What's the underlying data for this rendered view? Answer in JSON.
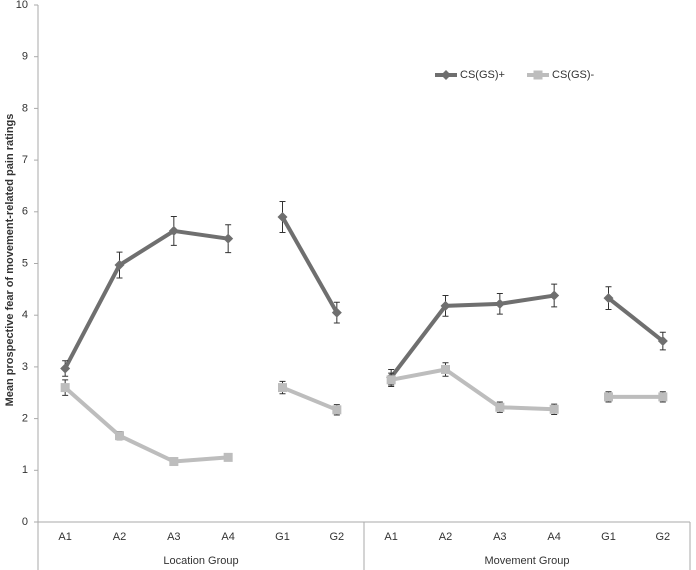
{
  "chart_data": {
    "type": "line",
    "y_label": "Mean prospective fear of movement-related pain ratings",
    "groups": [
      {
        "label": "Location Group",
        "categories": [
          "A1",
          "A2",
          "A3",
          "A4",
          "G1",
          "G2"
        ]
      },
      {
        "label": "Movement Group",
        "categories": [
          "A1",
          "A2",
          "A3",
          "A4",
          "G1",
          "G2"
        ]
      }
    ],
    "series": [
      {
        "name": "CS(GS)+",
        "color": "#6f6f6f",
        "marker": "diamond",
        "values": [
          2.97,
          4.97,
          5.63,
          5.48,
          5.9,
          4.05,
          2.8,
          4.18,
          4.22,
          4.38,
          4.33,
          3.5
        ],
        "errors": [
          0.15,
          0.25,
          0.28,
          0.27,
          0.3,
          0.2,
          0.15,
          0.2,
          0.2,
          0.22,
          0.22,
          0.17
        ]
      },
      {
        "name": "CS(GS)-",
        "color": "#bdbdbd",
        "marker": "square",
        "values": [
          2.6,
          1.67,
          1.17,
          1.25,
          2.6,
          2.17,
          2.75,
          2.95,
          2.22,
          2.18,
          2.42,
          2.42
        ],
        "errors": [
          0.15,
          0.08,
          0.05,
          0.05,
          0.12,
          0.1,
          0.13,
          0.13,
          0.1,
          0.1,
          0.1,
          0.1
        ]
      }
    ],
    "ylim": [
      0,
      10
    ],
    "yticks": [
      0,
      1,
      2,
      3,
      4,
      5,
      6,
      7,
      8,
      9,
      10
    ],
    "grid": false
  }
}
